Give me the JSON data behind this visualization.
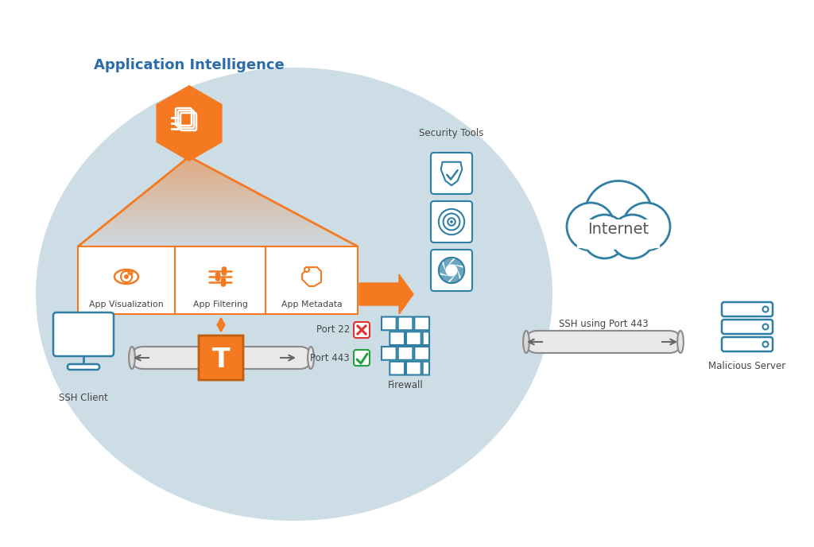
{
  "bg_color": "#ffffff",
  "ellipse_color": "#cddde6",
  "title_text": "Application Intelligence",
  "title_color": "#2b6ca8",
  "title_fontsize": 13,
  "orange": "#f47920",
  "orange_grad_top": "#f8c49a",
  "teal": "#2e7fa3",
  "red_color": "#e03030",
  "green_color": "#25a040",
  "dark_text": "#444444",
  "labels": {
    "app_viz": "App Visualization",
    "app_filter": "App Filtering",
    "app_meta": "App Metadata",
    "ssh_client": "SSH Client",
    "firewall": "Firewall",
    "security_tools": "Security Tools",
    "internet": "Internet",
    "malicious_server": "Malicious Server",
    "port22": "Port 22",
    "port443": "Port 443",
    "ssh_port443": "SSH using Port 443"
  }
}
